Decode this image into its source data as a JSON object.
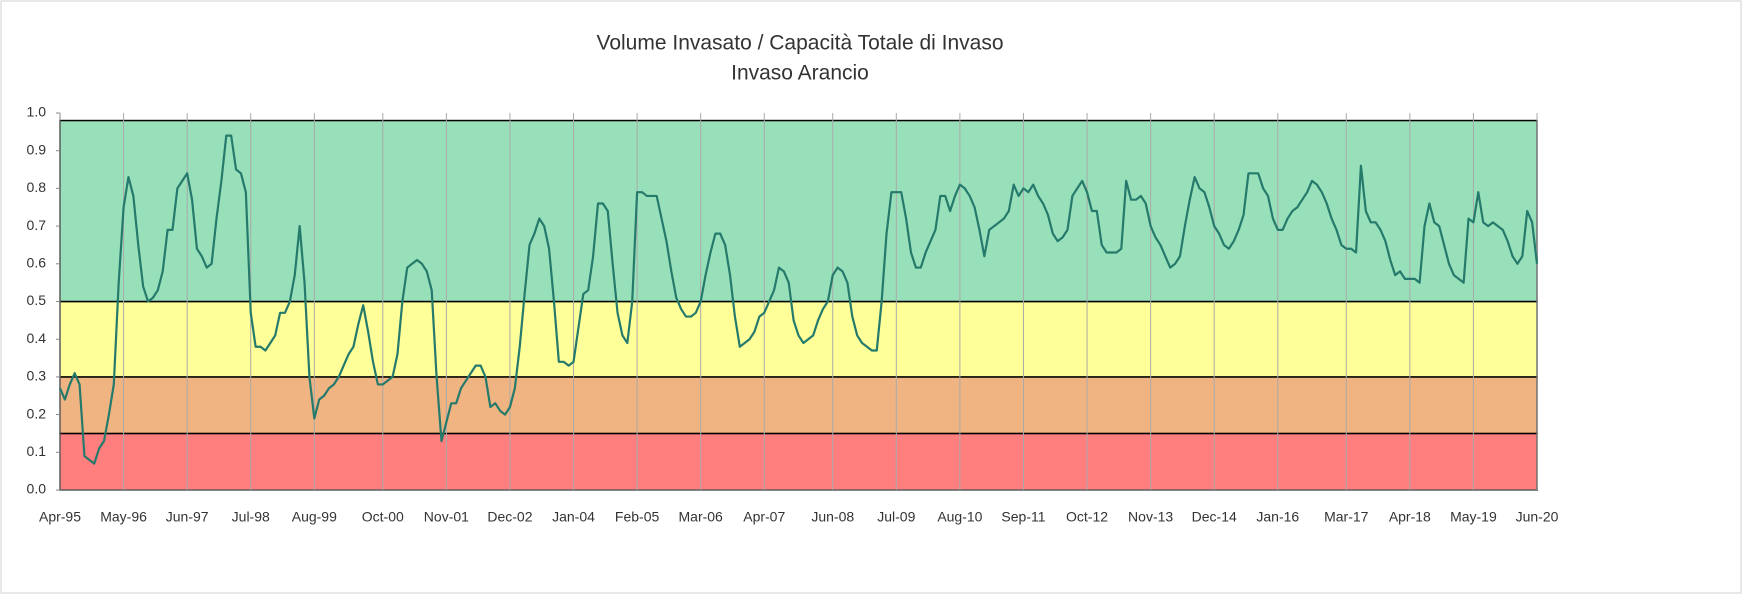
{
  "chart_data": {
    "type": "line",
    "title": "Volume Invasato / Capacità Totale di Invaso",
    "subtitle": "Invaso Arancio",
    "categories": [
      "Apr-95",
      null,
      null,
      null,
      null,
      null,
      null,
      null,
      null,
      null,
      null,
      null,
      null,
      "May-96",
      null,
      null,
      null,
      null,
      null,
      null,
      null,
      null,
      null,
      null,
      null,
      null,
      "Jun-97",
      null,
      null,
      null,
      null,
      null,
      null,
      null,
      null,
      null,
      null,
      null,
      null,
      "Jul-98",
      null,
      null,
      null,
      null,
      null,
      null,
      null,
      null,
      null,
      null,
      null,
      null,
      "Aug-99",
      null,
      null,
      null,
      null,
      null,
      null,
      null,
      null,
      null,
      null,
      null,
      null,
      null,
      "Oct-00",
      null,
      null,
      null,
      null,
      null,
      null,
      null,
      null,
      null,
      null,
      null,
      null,
      "Nov-01",
      null,
      null,
      null,
      null,
      null,
      null,
      null,
      null,
      null,
      null,
      null,
      null,
      "Dec-02",
      null,
      null,
      null,
      null,
      null,
      null,
      null,
      null,
      null,
      null,
      null,
      null,
      "Jan-04",
      null,
      null,
      null,
      null,
      null,
      null,
      null,
      null,
      null,
      null,
      null,
      null,
      "Feb-05",
      null,
      null,
      null,
      null,
      null,
      null,
      null,
      null,
      null,
      null,
      null,
      null,
      "Mar-06",
      null,
      null,
      null,
      null,
      null,
      null,
      null,
      null,
      null,
      null,
      null,
      null,
      "Apr-07",
      null,
      null,
      null,
      null,
      null,
      null,
      null,
      null,
      null,
      null,
      null,
      null,
      null,
      "Jun-08",
      null,
      null,
      null,
      null,
      null,
      null,
      null,
      null,
      null,
      null,
      null,
      null,
      "Jul-09",
      null,
      null,
      null,
      null,
      null,
      null,
      null,
      null,
      null,
      null,
      null,
      null,
      "Aug-10",
      null,
      null,
      null,
      null,
      null,
      null,
      null,
      null,
      null,
      null,
      null,
      null,
      "Sep-11",
      null,
      null,
      null,
      null,
      null,
      null,
      null,
      null,
      null,
      null,
      null,
      null,
      "Oct-12",
      null,
      null,
      null,
      null,
      null,
      null,
      null,
      null,
      null,
      null,
      null,
      null,
      "Nov-13",
      null,
      null,
      null,
      null,
      null,
      null,
      null,
      null,
      null,
      null,
      null,
      null,
      "Dec-14",
      null,
      null,
      null,
      null,
      null,
      null,
      null,
      null,
      null,
      null,
      null,
      null,
      "Jan-16",
      null,
      null,
      null,
      null,
      null,
      null,
      null,
      null,
      null,
      null,
      null,
      null,
      null,
      "Mar-17",
      null,
      null,
      null,
      null,
      null,
      null,
      null,
      null,
      null,
      null,
      null,
      null,
      "Apr-18",
      null,
      null,
      null,
      null,
      null,
      null,
      null,
      null,
      null,
      null,
      null,
      null,
      "May-19",
      null,
      null,
      null,
      null,
      null,
      null,
      null,
      null,
      null,
      null,
      null,
      null,
      "Jun-20"
    ],
    "values": [
      0.27,
      0.24,
      0.28,
      0.31,
      0.28,
      0.09,
      0.08,
      0.07,
      0.11,
      0.13,
      0.2,
      0.28,
      0.55,
      0.75,
      0.83,
      0.78,
      0.65,
      0.54,
      0.5,
      0.51,
      0.53,
      0.58,
      0.69,
      0.69,
      0.8,
      0.82,
      0.84,
      0.77,
      0.64,
      0.62,
      0.59,
      0.6,
      0.72,
      0.82,
      0.94,
      0.94,
      0.85,
      0.84,
      0.79,
      0.47,
      0.38,
      0.38,
      0.37,
      0.39,
      0.41,
      0.47,
      0.47,
      0.5,
      0.57,
      0.7,
      0.55,
      0.3,
      0.19,
      0.24,
      0.25,
      0.27,
      0.28,
      0.3,
      0.33,
      0.36,
      0.38,
      0.44,
      0.49,
      0.42,
      0.34,
      0.28,
      0.28,
      0.29,
      0.3,
      0.36,
      0.5,
      0.59,
      0.6,
      0.61,
      0.6,
      0.58,
      0.53,
      0.3,
      0.13,
      0.18,
      0.23,
      0.23,
      0.27,
      0.29,
      0.31,
      0.33,
      0.33,
      0.3,
      0.22,
      0.23,
      0.21,
      0.2,
      0.22,
      0.27,
      0.38,
      0.52,
      0.65,
      0.68,
      0.72,
      0.7,
      0.64,
      0.5,
      0.34,
      0.34,
      0.33,
      0.34,
      0.43,
      0.52,
      0.53,
      0.62,
      0.76,
      0.76,
      0.74,
      0.6,
      0.47,
      0.41,
      0.39,
      0.5,
      0.79,
      0.79,
      0.78,
      0.78,
      0.78,
      0.72,
      0.66,
      0.58,
      0.51,
      0.48,
      0.46,
      0.46,
      0.47,
      0.5,
      0.57,
      0.63,
      0.68,
      0.68,
      0.65,
      0.57,
      0.46,
      0.38,
      0.39,
      0.4,
      0.42,
      0.46,
      0.47,
      0.5,
      0.53,
      0.59,
      0.58,
      0.55,
      0.45,
      0.41,
      0.39,
      0.4,
      0.41,
      0.45,
      0.48,
      0.5,
      0.57,
      0.59,
      0.58,
      0.55,
      0.46,
      0.41,
      0.39,
      0.38,
      0.37,
      0.37,
      0.5,
      0.68,
      0.79,
      0.79,
      0.79,
      0.72,
      0.63,
      0.59,
      0.59,
      0.63,
      0.66,
      0.69,
      0.78,
      0.78,
      0.74,
      0.78,
      0.81,
      0.8,
      0.78,
      0.75,
      0.69,
      0.62,
      0.69,
      0.7,
      0.71,
      0.72,
      0.74,
      0.81,
      0.78,
      0.8,
      0.79,
      0.81,
      0.78,
      0.76,
      0.73,
      0.68,
      0.66,
      0.67,
      0.69,
      0.78,
      0.8,
      0.82,
      0.79,
      0.74,
      0.74,
      0.65,
      0.63,
      0.63,
      0.63,
      0.64,
      0.82,
      0.77,
      0.77,
      0.78,
      0.76,
      0.7,
      0.67,
      0.65,
      0.62,
      0.59,
      0.6,
      0.62,
      0.7,
      0.77,
      0.83,
      0.8,
      0.79,
      0.75,
      0.7,
      0.68,
      0.65,
      0.64,
      0.66,
      0.69,
      0.73,
      0.84,
      0.84,
      0.84,
      0.8,
      0.78,
      0.72,
      0.69,
      0.69,
      0.72,
      0.74,
      0.75,
      0.77,
      0.79,
      0.82,
      0.81,
      0.79,
      0.76,
      0.72,
      0.69,
      0.65,
      0.64,
      0.64,
      0.63,
      0.86,
      0.74,
      0.71,
      0.71,
      0.69,
      0.66,
      0.61,
      0.57,
      0.58,
      0.56,
      0.56,
      0.56,
      0.55,
      0.7,
      0.76,
      0.71,
      0.7,
      0.65,
      0.6,
      0.57,
      0.56,
      0.55,
      0.72,
      0.71,
      0.79,
      0.71,
      0.7,
      0.71,
      0.7,
      0.69,
      0.66,
      0.62,
      0.6,
      0.62,
      0.74,
      0.71,
      0.6
    ],
    "color": "#257a6c",
    "bands": [
      {
        "from": 0,
        "to": 0.15,
        "color": "#ff7e7e"
      },
      {
        "from": 0.15,
        "to": 0.3,
        "color": "#f0b482"
      },
      {
        "from": 0.3,
        "to": 0.5,
        "color": "#ffff99"
      },
      {
        "from": 0.5,
        "to": 0.98,
        "color": "#98e0b9"
      }
    ],
    "ylim": [
      0,
      1
    ],
    "yticks": [
      {
        "value": 0,
        "label": "0.0"
      },
      0.1,
      0.2,
      0.3,
      0.4,
      0.5,
      0.6,
      0.7,
      0.8,
      0.9,
      {
        "value": 1,
        "label": "1.0"
      }
    ],
    "grid": true
  }
}
